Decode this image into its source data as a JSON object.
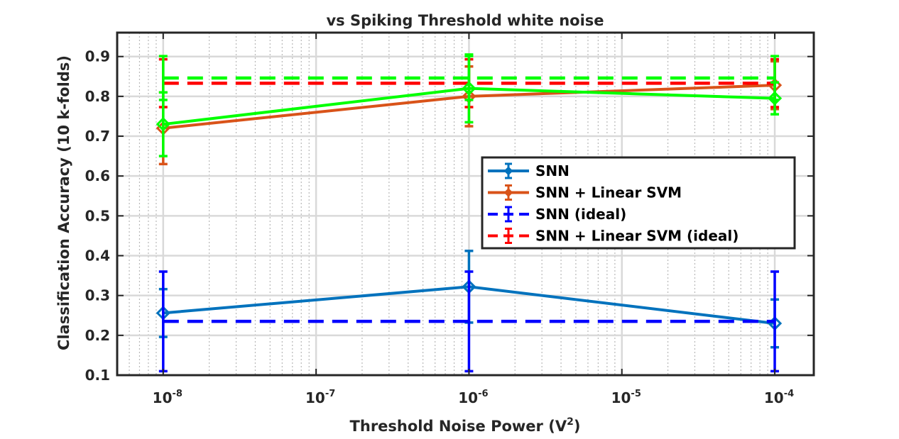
{
  "chart_data": {
    "type": "line",
    "title": "vs Spiking Threshold white noise",
    "xlabel": {
      "text": "Threshold Noise Power (V",
      "sup": "2",
      "tail": ")"
    },
    "ylabel": "Classification Accuracy (10 k-folds)",
    "x_scale": "log",
    "xlim": [
      5e-09,
      0.00018
    ],
    "ylim": [
      0.1,
      0.96
    ],
    "x_ticks": [
      {
        "value": 1e-08,
        "base": "10",
        "exp": "-8"
      },
      {
        "value": 1e-07,
        "base": "10",
        "exp": "-7"
      },
      {
        "value": 1e-06,
        "base": "10",
        "exp": "-6"
      },
      {
        "value": 1e-05,
        "base": "10",
        "exp": "-5"
      },
      {
        "value": 0.0001,
        "base": "10",
        "exp": "-4"
      }
    ],
    "y_ticks": [
      0.1,
      0.2,
      0.3,
      0.4,
      0.5,
      0.6,
      0.7,
      0.8,
      0.9
    ],
    "y_tick_labels": [
      "0.1",
      "0.2",
      "0.3",
      "0.4",
      "0.5",
      "0.6",
      "0.7",
      "0.8",
      "0.9"
    ],
    "grid": true,
    "legend_position": "center-right",
    "series": [
      {
        "name": "SNN",
        "color": "#0072BD",
        "style": "solid",
        "marker": "diamond",
        "x": [
          1e-08,
          1e-06,
          0.0001
        ],
        "y": [
          0.256,
          0.322,
          0.23
        ],
        "err": [
          0.06,
          0.09,
          0.06
        ]
      },
      {
        "name": "SNN + Linear SVM",
        "color": "#D95319",
        "style": "solid",
        "marker": "diamond",
        "x": [
          1e-08,
          1e-06,
          0.0001
        ],
        "y": [
          0.72,
          0.8,
          0.828
        ],
        "err": [
          0.09,
          0.075,
          0.06
        ]
      },
      {
        "name": "SNN (ideal)",
        "color": "#0000FF",
        "style": "dashed",
        "marker": "none",
        "x": [
          1e-08,
          1e-06,
          0.0001
        ],
        "y": [
          0.235,
          0.235,
          0.235
        ],
        "err": [
          0.125,
          0.125,
          0.125
        ]
      },
      {
        "name": "SNN + Linear SVM (ideal)",
        "color": "#FF0000",
        "style": "dashed",
        "marker": "none",
        "x": [
          1e-08,
          1e-06,
          0.0001
        ],
        "y": [
          0.833,
          0.833,
          0.833
        ],
        "err": [
          0.06,
          0.06,
          0.06
        ]
      },
      {
        "name": "",
        "color": "#00FF00",
        "style": "solid",
        "marker": "diamond",
        "x": [
          1e-08,
          1e-06,
          0.0001
        ],
        "y": [
          0.73,
          0.82,
          0.795
        ],
        "err": [
          0.08,
          0.085,
          0.04
        ]
      },
      {
        "name": "",
        "color": "#00FF00",
        "style": "dashed",
        "marker": "none",
        "x": [
          1e-08,
          1e-06,
          0.0001
        ],
        "y": [
          0.846,
          0.846,
          0.846
        ],
        "err": [
          0.055,
          0.055,
          0.055
        ]
      }
    ]
  }
}
